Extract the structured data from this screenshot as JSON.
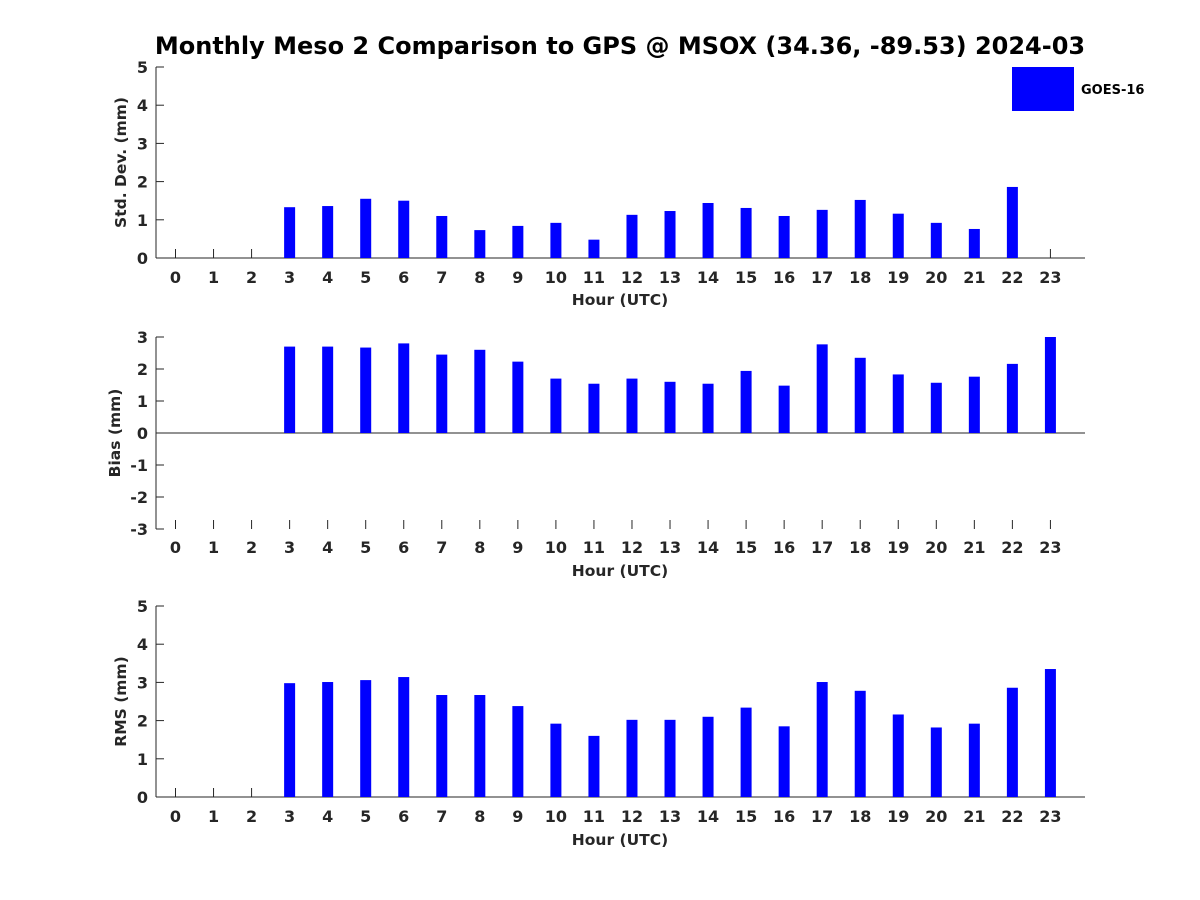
{
  "title": "Monthly Meso 2 Comparison to GPS @ MSOX (34.36, -89.53) 2024-03",
  "legend": {
    "label": "GOES-16",
    "color": "#0000ff",
    "placement": "top-right"
  },
  "chart_data": [
    {
      "type": "bar",
      "ylabel": "Std. Dev. (mm)",
      "xlabel": "Hour (UTC)",
      "ylim": [
        0,
        5
      ],
      "yticks": [
        "0",
        "1",
        "2",
        "3",
        "4",
        "5"
      ],
      "categories": [
        "0",
        "1",
        "2",
        "3",
        "4",
        "5",
        "6",
        "7",
        "8",
        "9",
        "10",
        "11",
        "12",
        "13",
        "14",
        "15",
        "16",
        "17",
        "18",
        "19",
        "20",
        "21",
        "22",
        "23"
      ],
      "series": [
        {
          "name": "GOES-16",
          "color": "#0000ff",
          "values": [
            null,
            null,
            null,
            1.33,
            1.36,
            1.55,
            1.5,
            1.1,
            0.73,
            0.84,
            0.92,
            0.48,
            1.13,
            1.23,
            1.44,
            1.31,
            1.1,
            1.26,
            1.52,
            1.16,
            0.92,
            0.76,
            1.86,
            null
          ]
        }
      ]
    },
    {
      "type": "bar",
      "ylabel": "Bias (mm)",
      "xlabel": "Hour (UTC)",
      "ylim": [
        -3,
        3
      ],
      "yticks": [
        "-3",
        "-2",
        "-1",
        "0",
        "1",
        "2",
        "3"
      ],
      "categories": [
        "0",
        "1",
        "2",
        "3",
        "4",
        "5",
        "6",
        "7",
        "8",
        "9",
        "10",
        "11",
        "12",
        "13",
        "14",
        "15",
        "16",
        "17",
        "18",
        "19",
        "20",
        "21",
        "22",
        "23"
      ],
      "series": [
        {
          "name": "GOES-16",
          "color": "#0000ff",
          "values": [
            null,
            null,
            null,
            2.7,
            2.7,
            2.67,
            2.8,
            2.45,
            2.6,
            2.23,
            1.7,
            1.54,
            1.7,
            1.6,
            1.54,
            1.94,
            1.48,
            2.77,
            2.35,
            1.83,
            1.57,
            1.76,
            2.16,
            3.0
          ]
        }
      ]
    },
    {
      "type": "bar",
      "ylabel": "RMS (mm)",
      "xlabel": "Hour (UTC)",
      "ylim": [
        0,
        5
      ],
      "yticks": [
        "0",
        "1",
        "2",
        "3",
        "4",
        "5"
      ],
      "categories": [
        "0",
        "1",
        "2",
        "3",
        "4",
        "5",
        "6",
        "7",
        "8",
        "9",
        "10",
        "11",
        "12",
        "13",
        "14",
        "15",
        "16",
        "17",
        "18",
        "19",
        "20",
        "21",
        "22",
        "23"
      ],
      "series": [
        {
          "name": "GOES-16",
          "color": "#0000ff",
          "values": [
            null,
            null,
            null,
            2.98,
            3.01,
            3.06,
            3.14,
            2.67,
            2.67,
            2.38,
            1.92,
            1.6,
            2.02,
            2.02,
            2.1,
            2.34,
            1.85,
            3.01,
            2.78,
            2.16,
            1.82,
            1.92,
            2.86,
            3.35
          ]
        }
      ]
    }
  ]
}
